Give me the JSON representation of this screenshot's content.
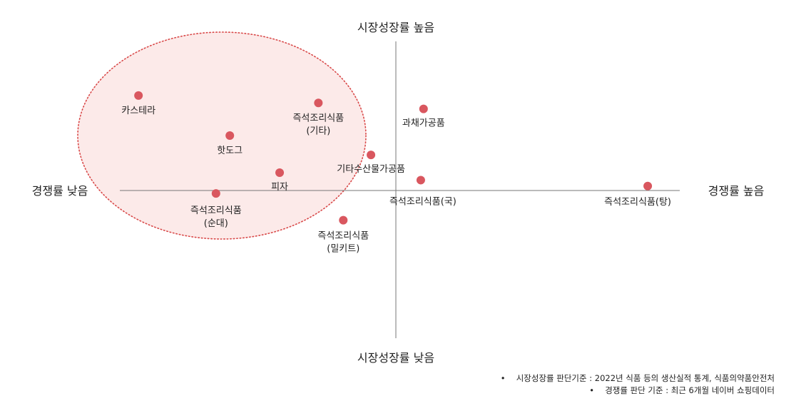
{
  "chart_data": {
    "type": "scatter",
    "title": "",
    "axes": {
      "y_top_label": "시장성장률 높음",
      "y_bottom_label": "시장성장률 낮음",
      "x_left_label": "경쟁률 낮음",
      "x_right_label": "경쟁률 높음"
    },
    "xlim": [
      -10,
      10
    ],
    "ylim": [
      -10,
      10
    ],
    "colors": {
      "point": "#d9575f",
      "highlight_fill": "#fbe3e1",
      "highlight_stroke": "#d94a4a",
      "axis": "#777777"
    },
    "points": [
      {
        "name": "카스테라",
        "lines": [
          "카스테라"
        ],
        "x": -9.3,
        "y": 6.4
      },
      {
        "name": "즉석조리식품(기타)",
        "lines": [
          "즉석조리식품",
          "(기타)"
        ],
        "x": -2.8,
        "y": 5.9
      },
      {
        "name": "핫도그",
        "lines": [
          "핫도그"
        ],
        "x": -6.0,
        "y": 3.7
      },
      {
        "name": "피자",
        "lines": [
          "피자"
        ],
        "x": -4.2,
        "y": 1.2
      },
      {
        "name": "즉석조리식품(순대)",
        "lines": [
          "즉석조리식품",
          "(순대)"
        ],
        "x": -6.5,
        "y": -0.2
      },
      {
        "name": "기타수산물가공품",
        "lines": [
          "기타수산물가공품"
        ],
        "x": -0.9,
        "y": 2.4
      },
      {
        "name": "즉석조리식품(밀키트)",
        "lines": [
          "즉석조리식품",
          "(밀키트)"
        ],
        "x": -1.9,
        "y": -2.0
      },
      {
        "name": "과채가공품",
        "lines": [
          "과채가공품"
        ],
        "x": 1.0,
        "y": 5.5
      },
      {
        "name": "즉석조리식품(국)",
        "lines": [
          "즉석조리식품(국)"
        ],
        "x": 0.9,
        "y": 0.7
      },
      {
        "name": "즉석조리식품(탕)",
        "lines": [
          "즉석조리식품(탕)"
        ],
        "x": 9.1,
        "y": 0.3
      }
    ],
    "highlight": {
      "shape": "ellipse",
      "style": "dotted",
      "covers": [
        "카스테라",
        "즉석조리식품(기타)",
        "핫도그",
        "피자",
        "즉석조리식품(순대)"
      ]
    }
  },
  "footnotes": [
    "시장성장률 판단기준 : 2022년 식품 등의 생산실적 통계, 식품의약품안전처",
    "경쟁률 판단 기준 : 최근 6개월 네이버 쇼핑데이터"
  ],
  "bullet": "•"
}
